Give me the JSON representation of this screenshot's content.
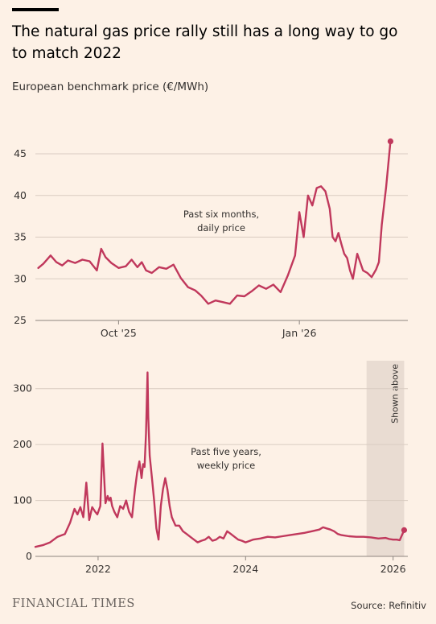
{
  "title": "The natural gas price rally still has a long way to go to match 2022",
  "subtitle": "European benchmark price (€/MWh)",
  "brand": "FINANCIAL TIMES",
  "source": "Source: Refinitiv",
  "colors": {
    "line": "#c0385c",
    "grid": "#d9ccc1",
    "shade": "#e9dcd2",
    "background": "#fdf1e6"
  },
  "chart_data": [
    {
      "type": "line",
      "annotation": "Past six months, daily price",
      "annotation_lines": [
        "Past six months,",
        "daily price"
      ],
      "x_ticks": [
        {
          "label": "Oct '25",
          "x": 2025.75
        },
        {
          "label": "Jan '26",
          "x": 2026.0
        }
      ],
      "y_ticks": [
        25,
        30,
        35,
        40,
        45
      ],
      "ylim": [
        25,
        48
      ],
      "xlim": [
        2025.635,
        2026.15
      ],
      "grid": true,
      "series": [
        {
          "x": [
            2025.639,
            2025.646,
            2025.656,
            2025.664,
            2025.672,
            2025.68,
            2025.69,
            2025.7,
            2025.71,
            2025.72,
            2025.726,
            2025.732,
            2025.74,
            2025.75,
            2025.76,
            2025.768,
            2025.776,
            2025.782,
            2025.788,
            2025.796,
            2025.806,
            2025.816,
            2025.826,
            2025.836,
            2025.846,
            2025.856,
            2025.864,
            2025.874,
            2025.884,
            2025.894,
            2025.904,
            2025.914,
            2025.924,
            2025.934,
            2025.944,
            2025.954,
            2025.964,
            2025.974,
            2025.984,
            2025.994,
            2026.0,
            2026.006,
            2026.012,
            2026.018,
            2026.024,
            2026.03,
            2026.036,
            2026.042,
            2026.046,
            2026.05,
            2026.054,
            2026.058,
            2026.062,
            2026.066,
            2026.07,
            2026.074,
            2026.08,
            2026.088,
            2026.094,
            2026.1,
            2026.106,
            2026.11,
            2026.114,
            2026.12,
            2026.126,
            2026.132,
            2026.136,
            2026.14
          ],
          "y": [
            31.3,
            31.8,
            32.8,
            32.0,
            31.6,
            32.2,
            31.9,
            32.3,
            32.1,
            31.0,
            33.6,
            32.6,
            31.9,
            31.3,
            31.5,
            32.3,
            31.4,
            32.0,
            31.0,
            30.7,
            31.4,
            31.2,
            31.7,
            30.1,
            29.0,
            28.6,
            28.0,
            27.0,
            27.4,
            27.2,
            27.0,
            28.0,
            27.9,
            28.5,
            29.2,
            28.8,
            29.3,
            28.4,
            30.4,
            32.8,
            38.0,
            35.0,
            40.0,
            38.8,
            40.9,
            41.1,
            40.5,
            38.4,
            35.0,
            34.5,
            35.5,
            34.2,
            33.0,
            32.5,
            31.0,
            30.0,
            33.0,
            31.0,
            30.7,
            30.2,
            31.1,
            32.0,
            36.5,
            41.0,
            46.5,
            null,
            null,
            null
          ]
        }
      ]
    },
    {
      "type": "line",
      "annotation": "Past five years, weekly price",
      "annotation_lines": [
        "Past five years,",
        "weekly price"
      ],
      "x_ticks": [
        {
          "label": "2022",
          "x": 2022.0
        },
        {
          "label": "2024",
          "x": 2024.0
        },
        {
          "label": "2026",
          "x": 2026.0
        }
      ],
      "y_ticks": [
        0,
        100,
        200,
        300
      ],
      "ylim": [
        0,
        350
      ],
      "xlim": [
        2021.15,
        2026.2
      ],
      "grid": true,
      "shaded_region": {
        "from": 2025.64,
        "to": 2026.15,
        "label": "Shown above"
      },
      "series": [
        {
          "x": [
            2021.15,
            2021.25,
            2021.35,
            2021.45,
            2021.55,
            2021.62,
            2021.68,
            2021.72,
            2021.76,
            2021.8,
            2021.84,
            2021.88,
            2021.92,
            2021.96,
            2021.99,
            2022.03,
            2022.06,
            2022.1,
            2022.13,
            2022.15,
            2022.17,
            2022.19,
            2022.22,
            2022.26,
            2022.3,
            2022.34,
            2022.38,
            2022.42,
            2022.46,
            2022.5,
            2022.53,
            2022.56,
            2022.59,
            2022.61,
            2022.63,
            2022.65,
            2022.67,
            2022.68,
            2022.7,
            2022.73,
            2022.76,
            2022.79,
            2022.82,
            2022.85,
            2022.88,
            2022.91,
            2022.94,
            2022.97,
            2023.0,
            2023.05,
            2023.1,
            2023.15,
            2023.2,
            2023.25,
            2023.3,
            2023.35,
            2023.4,
            2023.45,
            2023.5,
            2023.55,
            2023.6,
            2023.65,
            2023.7,
            2023.75,
            2023.8,
            2023.85,
            2023.9,
            2023.95,
            2024.0,
            2024.1,
            2024.2,
            2024.3,
            2024.4,
            2024.5,
            2024.6,
            2024.7,
            2024.8,
            2024.9,
            2025.0,
            2025.05,
            2025.1,
            2025.15,
            2025.2,
            2025.25,
            2025.3,
            2025.4,
            2025.5,
            2025.6,
            2025.7,
            2025.8,
            2025.9,
            2025.95,
            2026.0,
            2026.05,
            2026.09,
            2026.12,
            2026.15
          ],
          "y": [
            17,
            20,
            25,
            35,
            40,
            60,
            85,
            75,
            88,
            70,
            132,
            65,
            88,
            80,
            75,
            90,
            202,
            95,
            108,
            100,
            105,
            90,
            80,
            70,
            90,
            85,
            100,
            80,
            70,
            120,
            150,
            170,
            140,
            165,
            160,
            220,
            329,
            250,
            180,
            140,
            100,
            50,
            30,
            90,
            120,
            140,
            120,
            90,
            70,
            55,
            55,
            45,
            40,
            35,
            30,
            25,
            28,
            30,
            35,
            28,
            30,
            35,
            32,
            45,
            40,
            35,
            30,
            28,
            25,
            30,
            32,
            35,
            34,
            36,
            38,
            40,
            42,
            45,
            48,
            52,
            50,
            48,
            45,
            40,
            38,
            36,
            35,
            35,
            34,
            32,
            33,
            31,
            30,
            30,
            29,
            38,
            47
          ]
        }
      ]
    }
  ]
}
